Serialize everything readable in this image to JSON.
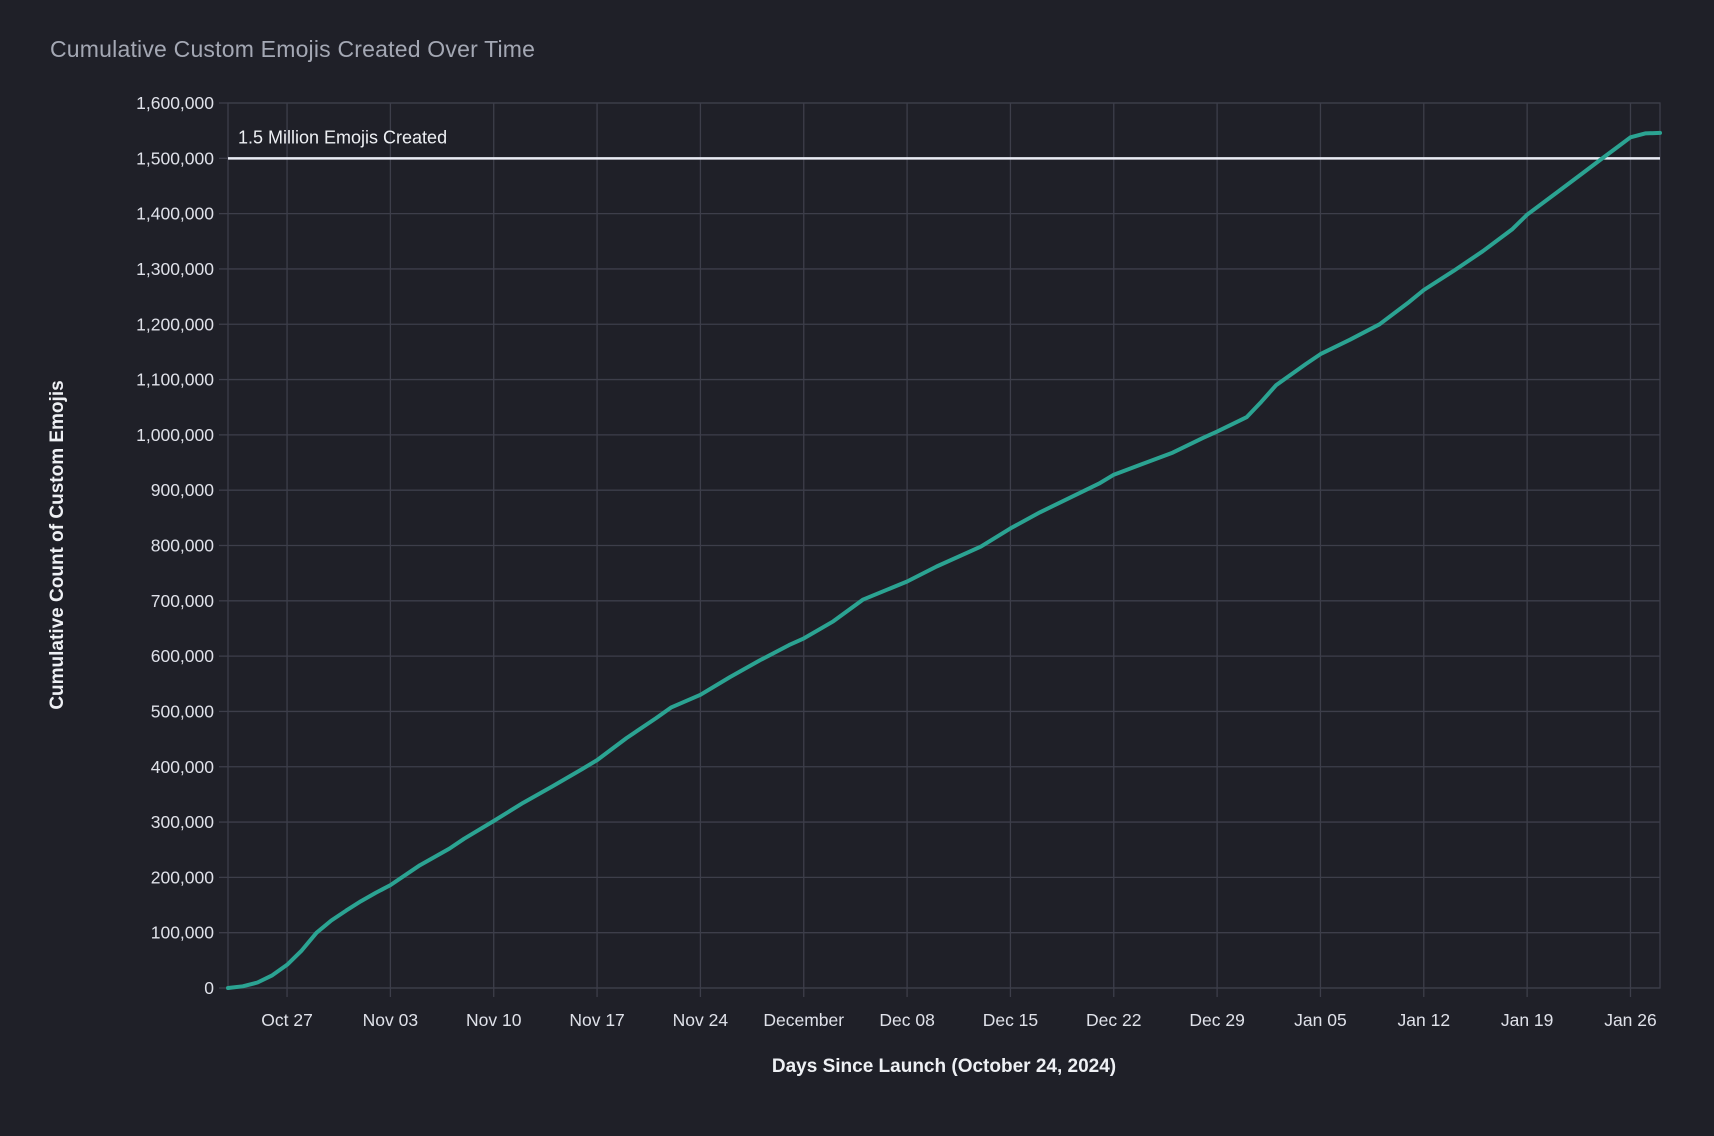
{
  "colors": {
    "background": "#1f2028",
    "gridline": "#3d3e4a",
    "title_text": "#a4a8b4",
    "axis_title_text": "#eef0f4",
    "tick_label_text": "#dfe1e9",
    "series_line": "#2ba392",
    "reference_line": "#e9ebf4"
  },
  "chart_data": {
    "type": "line",
    "title": "Cumulative Custom Emojis Created Over Time",
    "xlabel": "Days Since Launch (October 24, 2024)",
    "ylabel": "Cumulative Count of Custom Emojis",
    "grid": true,
    "legend_position": "none",
    "ylim": [
      0,
      1600000
    ],
    "xlim_days_from_oct23": [
      0,
      97
    ],
    "y_ticks": [
      {
        "value": 0,
        "label": "0"
      },
      {
        "value": 100000,
        "label": "100,000"
      },
      {
        "value": 200000,
        "label": "200,000"
      },
      {
        "value": 300000,
        "label": "300,000"
      },
      {
        "value": 400000,
        "label": "400,000"
      },
      {
        "value": 500000,
        "label": "500,000"
      },
      {
        "value": 600000,
        "label": "600,000"
      },
      {
        "value": 700000,
        "label": "700,000"
      },
      {
        "value": 800000,
        "label": "800,000"
      },
      {
        "value": 900000,
        "label": "900,000"
      },
      {
        "value": 1000000,
        "label": "1,000,000"
      },
      {
        "value": 1100000,
        "label": "1,100,000"
      },
      {
        "value": 1200000,
        "label": "1,200,000"
      },
      {
        "value": 1300000,
        "label": "1,300,000"
      },
      {
        "value": 1400000,
        "label": "1,400,000"
      },
      {
        "value": 1500000,
        "label": "1,500,000"
      },
      {
        "value": 1600000,
        "label": "1,600,000"
      }
    ],
    "x_ticks": [
      {
        "day": 4,
        "label": "Oct 27"
      },
      {
        "day": 11,
        "label": "Nov 03"
      },
      {
        "day": 18,
        "label": "Nov 10"
      },
      {
        "day": 25,
        "label": "Nov 17"
      },
      {
        "day": 32,
        "label": "Nov 24"
      },
      {
        "day": 39,
        "label": "December"
      },
      {
        "day": 46,
        "label": "Dec 08"
      },
      {
        "day": 53,
        "label": "Dec 15"
      },
      {
        "day": 60,
        "label": "Dec 22"
      },
      {
        "day": 67,
        "label": "Dec 29"
      },
      {
        "day": 74,
        "label": "Jan 05"
      },
      {
        "day": 81,
        "label": "Jan 12"
      },
      {
        "day": 88,
        "label": "Jan 19"
      },
      {
        "day": 95,
        "label": "Jan 26"
      }
    ],
    "reference_line": {
      "value": 1500000,
      "label": "1.5 Million Emojis Created",
      "color": "#e9ebf4"
    },
    "series": [
      {
        "name": "Cumulative Custom Emojis",
        "color": "#2ba392",
        "points": [
          [
            "Oct 23",
            0,
            0
          ],
          [
            "Oct 24",
            1,
            3000
          ],
          [
            "Oct 25",
            2,
            10000
          ],
          [
            "Oct 26",
            3,
            23000
          ],
          [
            "Oct 27",
            4,
            42000
          ],
          [
            "Oct 28",
            5,
            68000
          ],
          [
            "Oct 29",
            6,
            100000
          ],
          [
            "Oct 30",
            7,
            122000
          ],
          [
            "Oct 31",
            8,
            140000
          ],
          [
            "Nov 01",
            9,
            157000
          ],
          [
            "Nov 02",
            10,
            172000
          ],
          [
            "Nov 03",
            11,
            186000
          ],
          [
            "Nov 05",
            13,
            222000
          ],
          [
            "Nov 07",
            15,
            252000
          ],
          [
            "Nov 08",
            16,
            270000
          ],
          [
            "Nov 10",
            18,
            302000
          ],
          [
            "Nov 12",
            20,
            335000
          ],
          [
            "Nov 14",
            22,
            365000
          ],
          [
            "Nov 16",
            24,
            396000
          ],
          [
            "Nov 17",
            25,
            412000
          ],
          [
            "Nov 19",
            27,
            452000
          ],
          [
            "Nov 21",
            29,
            488000
          ],
          [
            "Nov 22",
            30,
            507000
          ],
          [
            "Nov 24",
            32,
            530000
          ],
          [
            "Nov 26",
            34,
            562000
          ],
          [
            "Nov 28",
            36,
            592000
          ],
          [
            "Nov 30",
            38,
            620000
          ],
          [
            "Dec 01",
            39,
            632000
          ],
          [
            "Dec 03",
            41,
            663000
          ],
          [
            "Dec 05",
            43,
            702000
          ],
          [
            "Dec 08",
            46,
            735000
          ],
          [
            "Dec 10",
            48,
            762000
          ],
          [
            "Dec 13",
            51,
            798000
          ],
          [
            "Dec 15",
            53,
            831000
          ],
          [
            "Dec 17",
            55,
            860000
          ],
          [
            "Dec 19",
            57,
            886000
          ],
          [
            "Dec 21",
            59,
            912000
          ],
          [
            "Dec 22",
            60,
            928000
          ],
          [
            "Dec 24",
            62,
            948000
          ],
          [
            "Dec 26",
            64,
            968000
          ],
          [
            "Dec 28",
            66,
            994000
          ],
          [
            "Dec 29",
            67,
            1006000
          ],
          [
            "Dec 31",
            69,
            1032000
          ],
          [
            "Jan 01",
            70,
            1060000
          ],
          [
            "Jan 02",
            71,
            1090000
          ],
          [
            "Jan 04",
            73,
            1128000
          ],
          [
            "Jan 05",
            74,
            1146000
          ],
          [
            "Jan 07",
            76,
            1172000
          ],
          [
            "Jan 09",
            78,
            1200000
          ],
          [
            "Jan 11",
            80,
            1240000
          ],
          [
            "Jan 12",
            81,
            1262000
          ],
          [
            "Jan 14",
            83,
            1296000
          ],
          [
            "Jan 16",
            85,
            1332000
          ],
          [
            "Jan 18",
            87,
            1372000
          ],
          [
            "Jan 19",
            88,
            1398000
          ],
          [
            "Jan 21",
            90,
            1438000
          ],
          [
            "Jan 23",
            92,
            1478000
          ],
          [
            "Jan 24",
            93,
            1498000
          ],
          [
            "Jan 25",
            94,
            1518000
          ],
          [
            "Jan 26",
            95,
            1538000
          ],
          [
            "Jan 27",
            96,
            1545000
          ],
          [
            "Jan 28",
            97,
            1546000
          ]
        ]
      }
    ]
  }
}
